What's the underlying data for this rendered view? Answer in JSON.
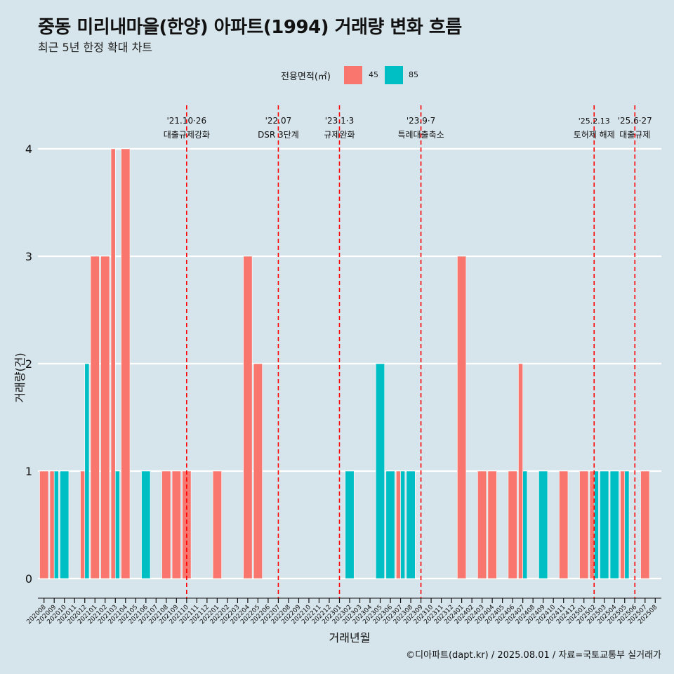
{
  "title": "중동 미리내마을(한양) 아파트(1994) 거래량 변화 흐름",
  "subtitle": "최근 5년 한정 확대 차트",
  "caption": "©디아파트(dapt.kr) / 2025.08.01 / 자료=국토교통부 실거래가",
  "legend": {
    "title": "전용면적(㎡)",
    "items": [
      {
        "label": "45",
        "color": "#f8766d"
      },
      {
        "label": "85",
        "color": "#00bfc4"
      }
    ]
  },
  "chart_data": {
    "type": "bar",
    "xlabel": "거래년월",
    "ylabel": "거래량(건)",
    "ylim": [
      -0.2,
      4.35
    ],
    "yticks": [
      0,
      1,
      2,
      3,
      4
    ],
    "categories": [
      "202008",
      "202009",
      "202010",
      "202011",
      "202012",
      "202101",
      "202102",
      "202103",
      "202104",
      "202105",
      "202106",
      "202107",
      "202108",
      "202109",
      "202110",
      "202111",
      "202112",
      "202201",
      "202202",
      "202203",
      "202204",
      "202205",
      "202206",
      "202207",
      "202208",
      "202209",
      "202210",
      "202211",
      "202212",
      "202301",
      "202302",
      "202303",
      "202304",
      "202305",
      "202306",
      "202307",
      "202308",
      "202309",
      "202310",
      "202311",
      "202312",
      "202401",
      "202402",
      "202403",
      "202404",
      "202405",
      "202406",
      "202407",
      "202408",
      "202409",
      "202410",
      "202411",
      "202412",
      "202501",
      "202502",
      "202503",
      "202504",
      "202505",
      "202506",
      "202507",
      "202508"
    ],
    "series": [
      {
        "name": "45",
        "color": "#f8766d",
        "values": [
          1,
          1,
          0,
          0,
          1,
          3,
          3,
          4,
          4,
          0,
          0,
          0,
          1,
          1,
          1,
          0,
          0,
          1,
          0,
          0,
          3,
          2,
          0,
          0,
          0,
          0,
          0,
          0,
          0,
          0,
          0,
          0,
          0,
          0,
          0,
          1,
          0,
          0,
          0,
          0,
          0,
          3,
          0,
          1,
          1,
          0,
          1,
          2,
          0,
          0,
          0,
          1,
          0,
          1,
          1,
          0,
          0,
          1,
          0,
          1,
          0
        ]
      },
      {
        "name": "85",
        "color": "#00bfc4",
        "values": [
          0,
          1,
          1,
          0,
          2,
          0,
          0,
          1,
          0,
          0,
          1,
          0,
          0,
          0,
          0,
          0,
          0,
          0,
          0,
          0,
          0,
          0,
          0,
          0,
          0,
          0,
          0,
          0,
          0,
          0,
          1,
          0,
          0,
          2,
          1,
          1,
          1,
          0,
          0,
          0,
          0,
          0,
          0,
          0,
          0,
          0,
          0,
          1,
          0,
          1,
          0,
          0,
          0,
          0,
          1,
          1,
          1,
          1,
          0,
          0,
          0
        ]
      }
    ],
    "annotations": [
      {
        "month": "202110",
        "date": "'21.10·26",
        "label": "대출규제강화"
      },
      {
        "month": "202207",
        "date": "'22.07",
        "label": "DSR 3단계"
      },
      {
        "month": "202301",
        "date": "'23.1·3",
        "label": "규제완화"
      },
      {
        "month": "202309",
        "date": "'23.9·7",
        "label": "특례대출축소"
      },
      {
        "month": "202502",
        "date": "'25.2.13",
        "label": "토허제 해제"
      },
      {
        "month": "202506",
        "date": "'25.6·27",
        "label": "대출규제"
      }
    ]
  }
}
